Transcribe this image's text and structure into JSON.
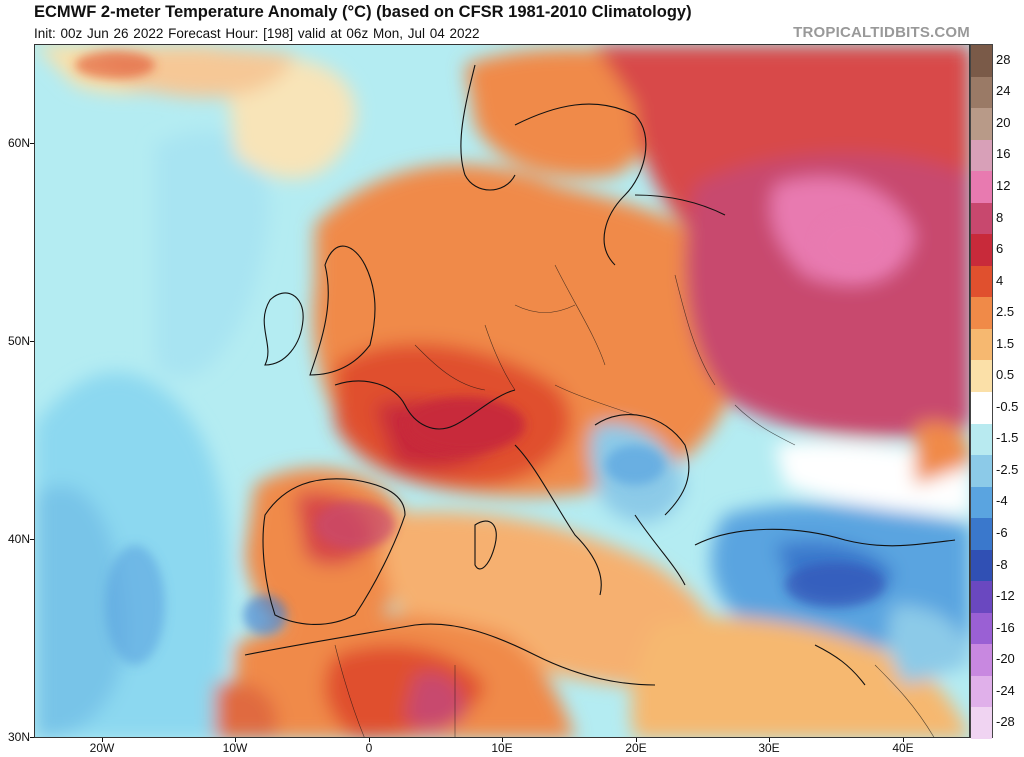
{
  "header": {
    "title": "ECMWF 2-meter Temperature Anomaly (°C) (based on CFSR 1981-2010 Climatology)",
    "subtitle": "Init: 00z Jun 26 2022   Forecast Hour: [198]   valid at 06z Mon, Jul 04 2022",
    "brand": "TROPICALTIDBITS.COM"
  },
  "map": {
    "lat_labels": [
      "60N",
      "50N",
      "40N",
      "30N"
    ],
    "lon_labels": [
      "20W",
      "10W",
      "0",
      "10E",
      "20E",
      "30E",
      "40E"
    ]
  },
  "colorbar": {
    "labels": [
      "28",
      "24",
      "20",
      "16",
      "12",
      "8",
      "6",
      "4",
      "2.5",
      "1.5",
      "0.5",
      "-0.5",
      "-1.5",
      "-2.5",
      "-4",
      "-6",
      "-8",
      "-12",
      "-16",
      "-20",
      "-24",
      "-28"
    ],
    "colors": [
      "#7a5a48",
      "#9a7a66",
      "#b89a88",
      "#d8a0b8",
      "#e87ab0",
      "#c8486e",
      "#c82a3a",
      "#e0502e",
      "#f08a48",
      "#f6b870",
      "#fbe0a8",
      "#ffffff",
      "#b8eaf0",
      "#8ccae8",
      "#5aa4e0",
      "#3a78cc",
      "#3050b4",
      "#6a48c0",
      "#9a60d4",
      "#c888e0",
      "#e0b0ea",
      "#f0d4f2"
    ]
  }
}
